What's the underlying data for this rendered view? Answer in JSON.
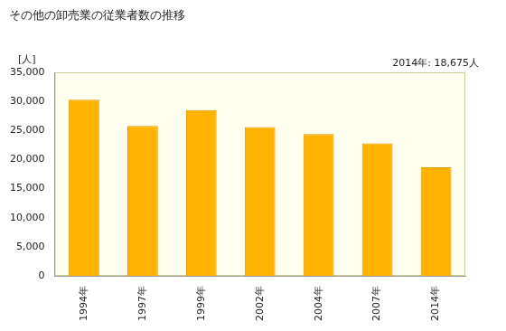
{
  "chart_data": {
    "type": "bar",
    "title": "その他の卸売業の従業者数の推移",
    "y_label": "[人]",
    "annotation": "2014年: 18,675人",
    "categories": [
      "1994年",
      "1997年",
      "1999年",
      "2002年",
      "2004年",
      "2007年",
      "2014年"
    ],
    "values": [
      30300,
      25800,
      28500,
      25600,
      24400,
      22800,
      18675
    ],
    "color": "#ffb300",
    "ylim": [
      0,
      35000
    ],
    "yticks": [
      0,
      {
        "value": 5000,
        "label": "5,000"
      },
      {
        "value": 10000,
        "label": "10,000"
      },
      {
        "value": 15000,
        "label": "15,000"
      },
      {
        "value": 20000,
        "label": "20,000"
      },
      {
        "value": 25000,
        "label": "25,000"
      },
      {
        "value": 30000,
        "label": "30,000"
      },
      {
        "value": 35000,
        "label": "35,000"
      }
    ],
    "grid": false
  }
}
